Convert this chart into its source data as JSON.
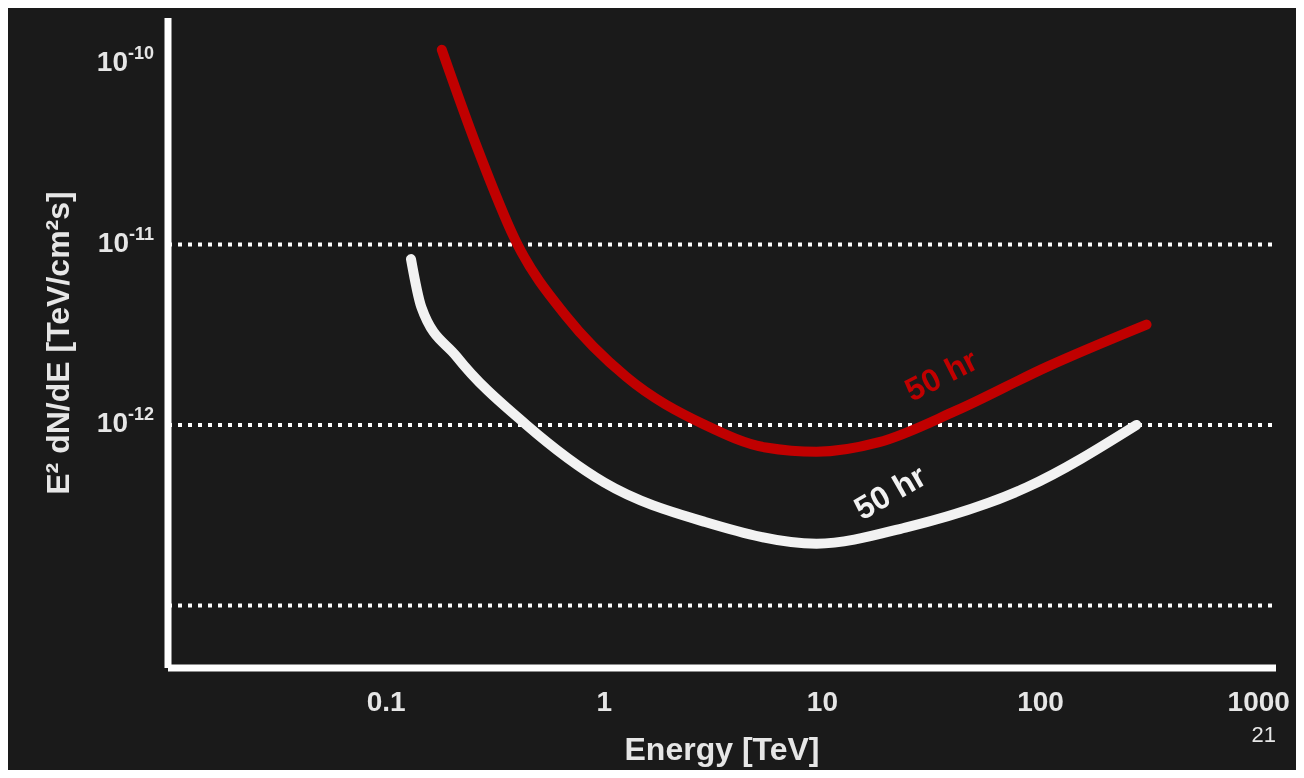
{
  "chart_data": {
    "type": "line",
    "xlabel": "Energy [TeV]",
    "ylabel": "E² dN/dE [TeV/cm²s]",
    "log": "xy",
    "xlim": [
      0.01,
      1200
    ],
    "xticks": [
      0.1,
      1,
      10,
      100,
      1000
    ],
    "ylim": [
      4.5e-14,
      1.8e-10
    ],
    "yticks": [
      {
        "value": 1e-10,
        "label": "10$^{-10}$"
      },
      {
        "value": 1e-11,
        "label": "10$^{-11}$"
      },
      {
        "value": 1e-12,
        "label": "10$^{-12}$"
      },
      {
        "value": 1e-13,
        "label": null
      }
    ],
    "marker": "none",
    "line_style": "solid",
    "series": [
      {
        "name": "50 hr",
        "color": "#c00000",
        "x": [
          0.18,
          0.26,
          0.4,
          0.67,
          1.26,
          2.9,
          5.5,
          9.4,
          18,
          41,
          107,
          306
        ],
        "values": [
          1.2e-10,
          3.5e-11,
          1e-11,
          4e-12,
          1.85e-12,
          1e-12,
          7.5e-13,
          7.1e-13,
          8e-13,
          1.2e-12,
          2.1e-12,
          3.6e-12
        ]
      },
      {
        "name": "50 hr",
        "color": "#f2f2f2",
        "x": [
          0.13,
          0.145,
          0.21,
          0.44,
          1,
          2.9,
          9.4,
          24,
          86,
          275
        ],
        "values": [
          8.3e-12,
          4.5e-12,
          2.4e-12,
          1e-12,
          4.8e-13,
          2.9e-13,
          2.2e-13,
          2.7e-13,
          4.5e-13,
          1e-12
        ]
      }
    ],
    "ref_lines": [
      {
        "axis": "y",
        "value": 1e-11,
        "color": "#ffffff",
        "line_style": "dotted"
      },
      {
        "axis": "y",
        "value": 1e-12,
        "color": "#ffffff",
        "line_style": "dotted"
      },
      {
        "axis": "y",
        "value": 1e-13,
        "color": "#ffffff",
        "line_style": "dotted"
      }
    ],
    "annotations": [
      "21"
    ]
  }
}
